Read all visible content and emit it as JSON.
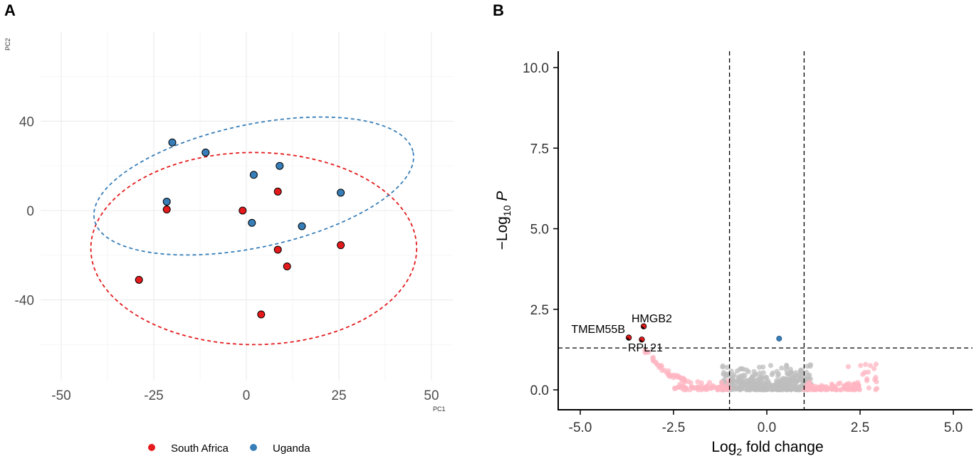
{
  "chart_data": [
    {
      "panel": "A",
      "type": "scatter",
      "title": "",
      "xlabel": "PC1",
      "ylabel": "PC2",
      "xlim": [
        -55,
        55
      ],
      "ylim": [
        -60,
        60
      ],
      "xticks": [
        -50,
        -25,
        0,
        25,
        50
      ],
      "yticks": [
        -40,
        0,
        40
      ],
      "grid": true,
      "legend_position": "bottom",
      "series": [
        {
          "name": "South Africa",
          "color": "#e41a1c",
          "points": [
            [
              -21.5,
              0.5
            ],
            [
              -1,
              0
            ],
            [
              8.5,
              8.5
            ],
            [
              8.5,
              -17.5
            ],
            [
              11,
              -25
            ],
            [
              25.5,
              -15.5
            ],
            [
              -29,
              -31
            ],
            [
              4,
              -46.5
            ]
          ],
          "ellipse": {
            "cx": 2,
            "cy": -17,
            "rx": 44,
            "ry": 43,
            "angle_deg": 0
          }
        },
        {
          "name": "Uganda",
          "color": "#377eb8",
          "points": [
            [
              -20,
              30.5
            ],
            [
              -11,
              26
            ],
            [
              2,
              16
            ],
            [
              9,
              20
            ],
            [
              25.5,
              8
            ],
            [
              -21.5,
              4
            ],
            [
              1.5,
              -5.5
            ],
            [
              15,
              -7
            ]
          ],
          "ellipse": {
            "cx": 2,
            "cy": 11,
            "rx": 44,
            "ry": 27.5,
            "angle_deg": -12
          }
        }
      ]
    },
    {
      "panel": "B",
      "type": "scatter",
      "title": "",
      "xlabel_main": "Log",
      "xlabel_sub": "2",
      "xlabel_rest": " fold change",
      "ylabel_main": "−Log",
      "ylabel_sub": "10",
      "ylabel_rest": " P",
      "xlim": [
        -5.5,
        5.5
      ],
      "ylim": [
        -0.5,
        10.5
      ],
      "xticks": [
        "-5.0",
        "-2.5",
        "0.0",
        "2.5",
        "5.0"
      ],
      "yticks": [
        "0.0",
        "2.5",
        "5.0",
        "7.5",
        "10.0"
      ],
      "vlines": [
        -1,
        1
      ],
      "hline": 1.3,
      "grid": false,
      "highlighted_points": [
        {
          "label": "HMGB2",
          "x": -3.3,
          "y": 1.97,
          "color": "#e41a1c"
        },
        {
          "label": "TMEM55B",
          "x": -3.7,
          "y": 1.62,
          "color": "#e41a1c"
        },
        {
          "label": "RPL21",
          "x": -3.35,
          "y": 1.56,
          "color": "#e41a1c"
        },
        {
          "label": "",
          "x": 0.33,
          "y": 1.59,
          "color": "#377eb8"
        }
      ],
      "background_colors": {
        "sig_fc": "#ffb6c1",
        "nonsig": "#bebebe"
      }
    }
  ],
  "labels": {
    "panelA": "A",
    "panelB": "B"
  }
}
